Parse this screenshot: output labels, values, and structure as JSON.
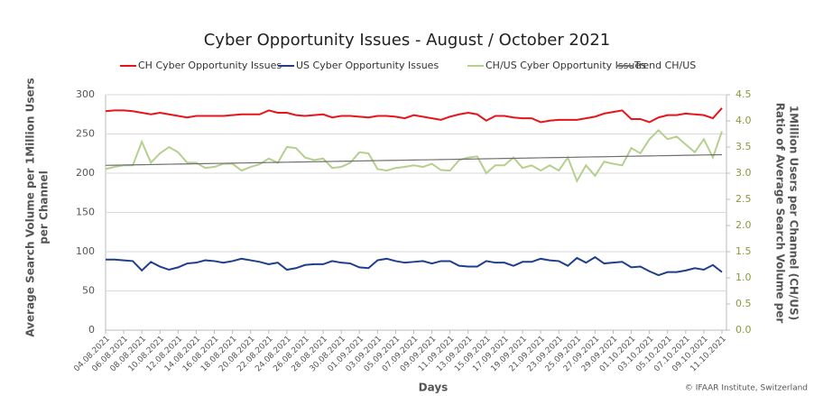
{
  "chart_data": {
    "type": "line",
    "title": "Cyber Opportunity Issues - August / October 2021",
    "x_label": "Days",
    "y_label_lines": [
      "Average Search Volume per 1Million Users",
      "per Channel"
    ],
    "y2_label_lines": [
      "Ratio of Average Search Volume per",
      "1Million Users per Channel  (CH/US)"
    ],
    "source": "© IFAAR Institute, Switzerland",
    "categories": [
      "04.08.2021",
      null,
      "06.08.2021",
      null,
      "08.08.2021",
      null,
      "10.08.2021",
      null,
      "12.08.2021",
      null,
      "14.08.2021",
      null,
      "16.08.2021",
      null,
      "18.08.2021",
      null,
      "20.08.2021",
      null,
      "22.08.2021",
      null,
      "24.08.2021",
      null,
      "26.08.2021",
      null,
      "28.08.2021",
      null,
      "30.08.2021",
      null,
      "01.09.2021",
      null,
      "03.09.2021",
      null,
      "05.09.2021",
      null,
      "07.09.2021",
      null,
      "09.09.2021",
      null,
      "11.09.2021",
      null,
      "13.09.2021",
      null,
      "15.09.2021",
      null,
      "17.09.2021",
      null,
      "19.09.2021",
      null,
      "21.09.2021",
      null,
      "23.09.2021",
      null,
      "25.09.2021",
      null,
      "27.09.2021",
      null,
      "29.09.2021",
      null,
      "01.10.2021",
      null,
      "03.10.2021",
      null,
      "05.10.2021",
      null,
      "07.10.2021",
      null,
      "09.10.2021",
      null,
      "11.10.2021"
    ],
    "series": [
      {
        "name": "CH Cyber Opportunity Issues",
        "color": "#e8141c",
        "values": [
          279,
          280,
          280,
          279,
          277,
          275,
          277,
          275,
          273,
          271,
          273,
          273,
          273,
          273,
          274,
          275,
          275,
          275,
          280,
          277,
          277,
          274,
          273,
          274,
          275,
          271,
          273,
          273,
          272,
          271,
          273,
          273,
          272,
          270,
          274,
          272,
          270,
          268,
          272,
          275,
          277,
          275,
          267,
          273,
          273,
          271,
          270,
          270,
          265,
          267,
          268,
          268,
          268,
          270,
          272,
          276,
          278,
          280,
          269,
          269,
          265,
          271,
          274,
          274,
          276,
          275,
          274,
          270,
          283
        ]
      },
      {
        "name": "US Cyber Opportunity Issues",
        "color": "#1f3e8c",
        "values": [
          90,
          90,
          89,
          88,
          76,
          87,
          81,
          77,
          80,
          85,
          86,
          89,
          88,
          86,
          88,
          91,
          89,
          87,
          84,
          86,
          77,
          79,
          83,
          84,
          84,
          88,
          86,
          85,
          80,
          79,
          89,
          91,
          88,
          86,
          87,
          88,
          85,
          88,
          88,
          82,
          81,
          81,
          88,
          86,
          86,
          82,
          87,
          87,
          91,
          89,
          88,
          82,
          92,
          86,
          93,
          85,
          86,
          87,
          80,
          81,
          75,
          70,
          74,
          74,
          76,
          79,
          77,
          83,
          74
        ]
      },
      {
        "name": "CH/US Cyber Opportunity Issues",
        "color": "#b5cf8e",
        "axis": "y2",
        "values": [
          3.08,
          3.12,
          3.15,
          3.15,
          3.6,
          3.2,
          3.38,
          3.5,
          3.4,
          3.2,
          3.2,
          3.1,
          3.12,
          3.18,
          3.18,
          3.05,
          3.12,
          3.17,
          3.28,
          3.2,
          3.5,
          3.48,
          3.3,
          3.25,
          3.28,
          3.1,
          3.12,
          3.2,
          3.4,
          3.38,
          3.08,
          3.05,
          3.1,
          3.12,
          3.15,
          3.12,
          3.18,
          3.06,
          3.05,
          3.25,
          3.3,
          3.32,
          3.0,
          3.15,
          3.15,
          3.3,
          3.1,
          3.15,
          3.05,
          3.15,
          3.05,
          3.3,
          2.85,
          3.15,
          2.95,
          3.22,
          3.18,
          3.15,
          3.48,
          3.38,
          3.65,
          3.82,
          3.65,
          3.7,
          3.55,
          3.4,
          3.65,
          3.3,
          3.8
        ]
      },
      {
        "name": "Trend CH/US",
        "color": "#707070",
        "axis": "y2",
        "values": [
          3.15,
          3.153,
          3.156,
          3.159,
          3.162,
          3.165,
          3.168,
          3.171,
          3.174,
          3.177,
          3.18,
          3.183,
          3.186,
          3.189,
          3.192,
          3.195,
          3.198,
          3.201,
          3.204,
          3.207,
          3.21,
          3.213,
          3.216,
          3.219,
          3.222,
          3.225,
          3.228,
          3.231,
          3.234,
          3.237,
          3.24,
          3.243,
          3.246,
          3.249,
          3.252,
          3.255,
          3.258,
          3.261,
          3.264,
          3.267,
          3.27,
          3.273,
          3.276,
          3.279,
          3.282,
          3.285,
          3.288,
          3.291,
          3.294,
          3.297,
          3.3,
          3.303,
          3.306,
          3.309,
          3.312,
          3.315,
          3.318,
          3.321,
          3.324,
          3.327,
          3.33,
          3.333,
          3.336,
          3.339,
          3.342,
          3.345,
          3.348,
          3.351,
          3.354
        ]
      }
    ],
    "ylim": [
      0,
      300
    ],
    "yticks": [
      0,
      50,
      100,
      150,
      200,
      250,
      300
    ],
    "y2lim": [
      0,
      4.5
    ],
    "y2ticks": [
      {
        "value": 0,
        "label": "0.0"
      },
      0.5,
      {
        "value": 1,
        "label": "1.0"
      },
      1.5,
      {
        "value": 2,
        "label": "2.0"
      },
      2.5,
      {
        "value": 3,
        "label": "3.0"
      },
      3.5,
      {
        "value": 4,
        "label": "4.0"
      },
      4.5
    ],
    "grid": true,
    "legend": "top"
  }
}
